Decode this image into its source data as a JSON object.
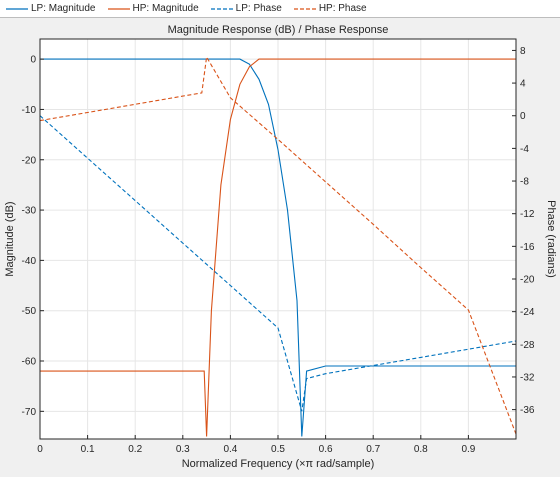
{
  "legend": {
    "items": [
      {
        "label": "LP: Magnitude",
        "color": "#0072BD",
        "dash": false
      },
      {
        "label": "HP: Magnitude",
        "color": "#D95319",
        "dash": false
      },
      {
        "label": "LP: Phase",
        "color": "#0072BD",
        "dash": true
      },
      {
        "label": "HP: Phase",
        "color": "#D95319",
        "dash": true
      }
    ]
  },
  "chart_data": {
    "type": "line",
    "title": "Magnitude Response (dB) / Phase Response",
    "xlabel": "Normalized Frequency (×π rad/sample)",
    "ylabel": "Magnitude (dB)",
    "y2label": "Phase (radians)",
    "xlim": [
      0,
      1
    ],
    "ylim": [
      -75.5,
      4
    ],
    "y2lim": [
      -39.6,
      9.4
    ],
    "xticks": [
      0,
      0.1,
      0.2,
      0.3,
      0.4,
      0.5,
      0.6,
      0.7,
      0.8,
      0.9
    ],
    "xtick_labels": [
      "0",
      "0.1",
      "0.2",
      "0.3",
      "0.4",
      "0.5",
      "0.6",
      "0.7",
      "0.8",
      "0.9"
    ],
    "yticks": [
      0,
      -10,
      -20,
      -30,
      -40,
      -50,
      -60,
      -70
    ],
    "ytick_labels": [
      "0",
      "-10",
      "-20",
      "-30",
      "-40",
      "-50",
      "-60",
      "-70"
    ],
    "y2ticks": [
      8,
      4,
      0,
      -4,
      -8,
      -12,
      -16,
      -20,
      -24,
      -28,
      -32,
      -36
    ],
    "y2tick_labels": [
      "8",
      "4",
      "0",
      "-4",
      "-8",
      "-12",
      "-16",
      "-20",
      "-24",
      "-28",
      "-32",
      "-36"
    ],
    "grid": true,
    "legend_position": "top",
    "colors": {
      "lp": "#0072BD",
      "hp": "#D95319"
    },
    "series": [
      {
        "name": "LP: Magnitude",
        "axis": "left",
        "style": "solid",
        "color": "#0072BD",
        "x": [
          0,
          0.05,
          0.1,
          0.15,
          0.2,
          0.25,
          0.3,
          0.35,
          0.4,
          0.42,
          0.44,
          0.46,
          0.48,
          0.5,
          0.52,
          0.54,
          0.55,
          0.56,
          0.6,
          0.65,
          0.7,
          0.75,
          0.8,
          0.85,
          0.9,
          0.95,
          1.0
        ],
        "y": [
          0,
          0,
          0,
          0,
          0,
          0,
          0,
          0,
          0,
          0,
          -1,
          -4,
          -9,
          -18,
          -30,
          -48,
          -75,
          -62,
          -61,
          -61,
          -61,
          -61,
          -61,
          -61,
          -61,
          -61,
          -61
        ]
      },
      {
        "name": "HP: Magnitude",
        "axis": "left",
        "style": "solid",
        "color": "#D95319",
        "x": [
          0,
          0.05,
          0.1,
          0.15,
          0.2,
          0.25,
          0.3,
          0.345,
          0.35,
          0.36,
          0.38,
          0.4,
          0.42,
          0.44,
          0.46,
          0.48,
          0.5,
          0.55,
          0.6,
          0.7,
          0.8,
          0.9,
          1.0
        ],
        "y": [
          -62,
          -62,
          -62,
          -62,
          -62,
          -62,
          -62,
          -62,
          -75,
          -50,
          -25,
          -12,
          -5,
          -1.5,
          0,
          0,
          0,
          0,
          0,
          0,
          0,
          0,
          0
        ]
      },
      {
        "name": "LP: Phase",
        "axis": "right",
        "style": "dashed",
        "color": "#0072BD",
        "x": [
          0,
          0.1,
          0.2,
          0.3,
          0.4,
          0.5,
          0.55,
          0.56,
          0.6,
          0.7,
          0.8,
          0.9,
          1.0
        ],
        "y": [
          0,
          -5.2,
          -10.4,
          -15.6,
          -20.8,
          -26,
          -36.2,
          -32.2,
          -31.6,
          -30.6,
          -29.6,
          -28.6,
          -27.6
        ]
      },
      {
        "name": "HP: Phase",
        "axis": "right",
        "style": "dashed",
        "color": "#D95319",
        "x": [
          0,
          0.1,
          0.2,
          0.3,
          0.34,
          0.35,
          0.4,
          0.5,
          0.6,
          0.7,
          0.8,
          0.9,
          1.0
        ],
        "y": [
          -0.6,
          0.4,
          1.4,
          2.4,
          2.8,
          7.2,
          2.2,
          -2.9,
          -8.1,
          -13.3,
          -18.6,
          -23.8,
          -39
        ]
      }
    ]
  }
}
